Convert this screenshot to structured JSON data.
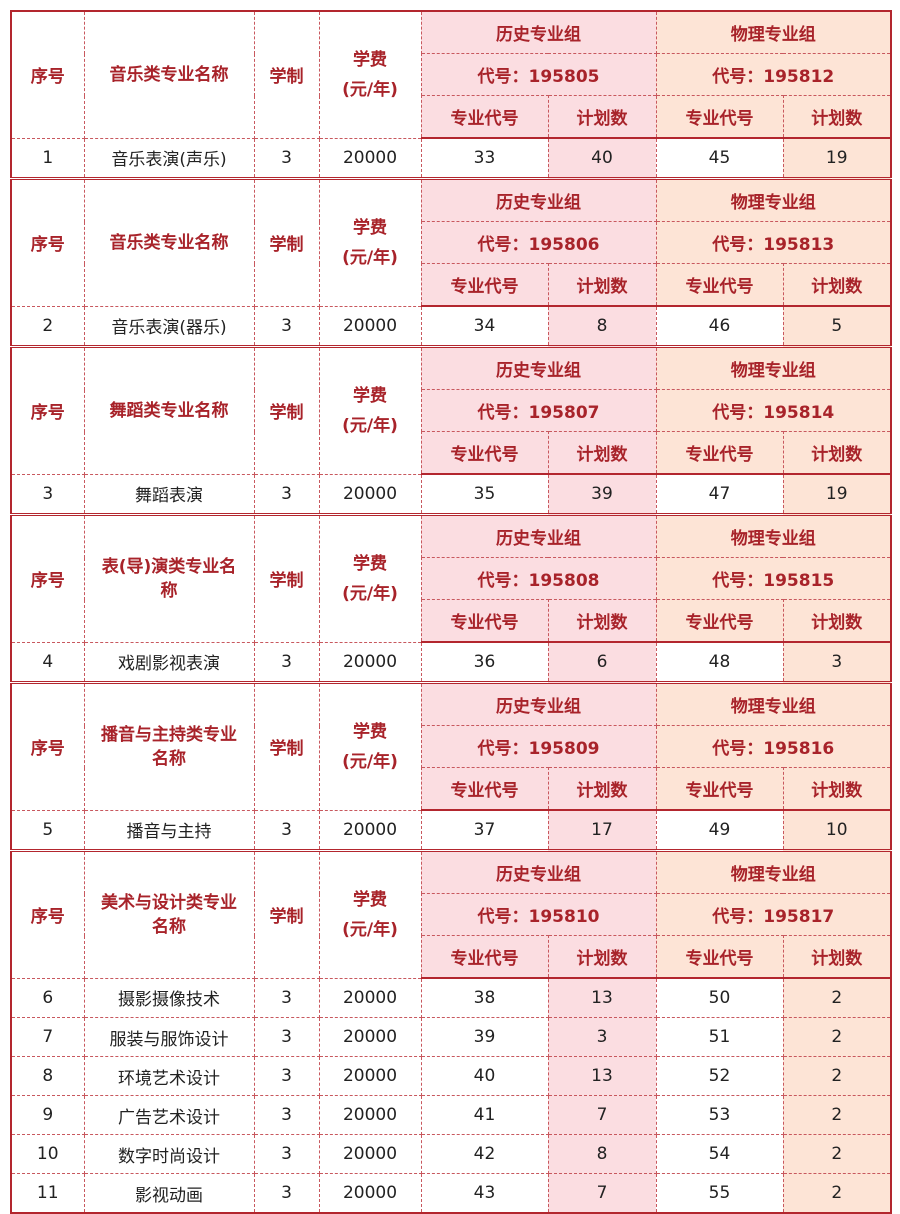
{
  "colors": {
    "border": "#b3262e",
    "header_text": "#a8232a",
    "history_bg": "#fbdde1",
    "physics_bg": "#fde4d6"
  },
  "headers": {
    "no": "序号",
    "years": "学制",
    "fee": "学费\n(元/年)",
    "history_group": "历史专业组",
    "physics_group": "物理专业组",
    "major_code": "专业代号",
    "plan": "计划数"
  },
  "blocks": [
    {
      "category": "音乐类专业名称",
      "history_code": "代号：195805",
      "physics_code": "代号：195812",
      "rows": [
        {
          "no": "1",
          "name": "音乐表演(声乐)",
          "years": "3",
          "fee": "20000",
          "h_code": "33",
          "h_plan": "40",
          "p_code": "45",
          "p_plan": "19"
        }
      ]
    },
    {
      "category": "音乐类专业名称",
      "history_code": "代号：195806",
      "physics_code": "代号：195813",
      "rows": [
        {
          "no": "2",
          "name": "音乐表演(器乐)",
          "years": "3",
          "fee": "20000",
          "h_code": "34",
          "h_plan": "8",
          "p_code": "46",
          "p_plan": "5"
        }
      ]
    },
    {
      "category": "舞蹈类专业名称",
      "history_code": "代号：195807",
      "physics_code": "代号：195814",
      "rows": [
        {
          "no": "3",
          "name": "舞蹈表演",
          "years": "3",
          "fee": "20000",
          "h_code": "35",
          "h_plan": "39",
          "p_code": "47",
          "p_plan": "19"
        }
      ]
    },
    {
      "category": "表(导)演类专业名称",
      "history_code": "代号：195808",
      "physics_code": "代号：195815",
      "rows": [
        {
          "no": "4",
          "name": "戏剧影视表演",
          "years": "3",
          "fee": "20000",
          "h_code": "36",
          "h_plan": "6",
          "p_code": "48",
          "p_plan": "3"
        }
      ]
    },
    {
      "category": "播音与主持类专业名称",
      "history_code": "代号：195809",
      "physics_code": "代号：195816",
      "rows": [
        {
          "no": "5",
          "name": "播音与主持",
          "years": "3",
          "fee": "20000",
          "h_code": "37",
          "h_plan": "17",
          "p_code": "49",
          "p_plan": "10"
        }
      ]
    },
    {
      "category": "美术与设计类专业名称",
      "history_code": "代号：195810",
      "physics_code": "代号：195817",
      "rows": [
        {
          "no": "6",
          "name": "摄影摄像技术",
          "years": "3",
          "fee": "20000",
          "h_code": "38",
          "h_plan": "13",
          "p_code": "50",
          "p_plan": "2"
        },
        {
          "no": "7",
          "name": "服装与服饰设计",
          "years": "3",
          "fee": "20000",
          "h_code": "39",
          "h_plan": "3",
          "p_code": "51",
          "p_plan": "2"
        },
        {
          "no": "8",
          "name": "环境艺术设计",
          "years": "3",
          "fee": "20000",
          "h_code": "40",
          "h_plan": "13",
          "p_code": "52",
          "p_plan": "2"
        },
        {
          "no": "9",
          "name": "广告艺术设计",
          "years": "3",
          "fee": "20000",
          "h_code": "41",
          "h_plan": "7",
          "p_code": "53",
          "p_plan": "2"
        },
        {
          "no": "10",
          "name": "数字时尚设计",
          "years": "3",
          "fee": "20000",
          "h_code": "42",
          "h_plan": "8",
          "p_code": "54",
          "p_plan": "2"
        },
        {
          "no": "11",
          "name": "影视动画",
          "years": "3",
          "fee": "20000",
          "h_code": "43",
          "h_plan": "7",
          "p_code": "55",
          "p_plan": "2"
        }
      ]
    }
  ]
}
